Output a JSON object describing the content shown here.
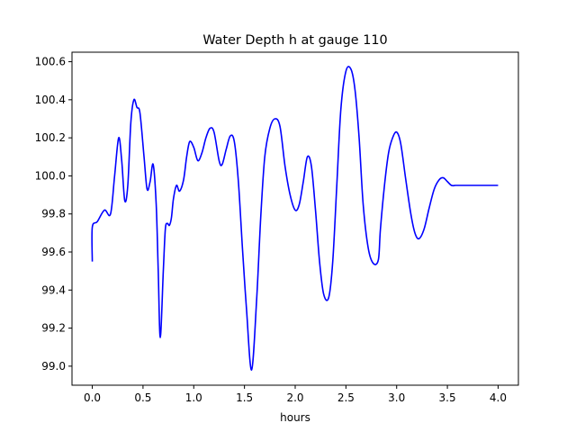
{
  "chart_data": {
    "type": "line",
    "title": "Water Depth h at gauge 110",
    "xlabel": "hours",
    "ylabel": "",
    "xlim": [
      -0.2,
      4.2
    ],
    "ylim": [
      98.9,
      100.65
    ],
    "xticks": [
      0.0,
      0.5,
      1.0,
      1.5,
      2.0,
      2.5,
      3.0,
      3.5,
      4.0
    ],
    "xtick_labels": [
      "0.0",
      "0.5",
      "1.0",
      "1.5",
      "2.0",
      "2.5",
      "3.0",
      "3.5",
      "4.0"
    ],
    "yticks": [
      99.0,
      99.2,
      99.4,
      99.6,
      99.8,
      100.0,
      100.2,
      100.4,
      100.6
    ],
    "ytick_labels": [
      "99.0",
      "99.2",
      "99.4",
      "99.6",
      "99.8",
      "100.0",
      "100.2",
      "100.4",
      "100.6"
    ],
    "grid": false,
    "line_color": "#0000ff",
    "series": [
      {
        "name": "",
        "x": [
          0.0,
          0.0,
          0.05,
          0.12,
          0.18,
          0.22,
          0.26,
          0.29,
          0.32,
          0.35,
          0.38,
          0.41,
          0.44,
          0.47,
          0.51,
          0.54,
          0.57,
          0.6,
          0.63,
          0.65,
          0.67,
          0.7,
          0.72,
          0.74,
          0.76,
          0.78,
          0.8,
          0.83,
          0.86,
          0.9,
          0.93,
          0.96,
          1.0,
          1.04,
          1.08,
          1.12,
          1.16,
          1.2,
          1.25,
          1.28,
          1.32,
          1.36,
          1.4,
          1.44,
          1.48,
          1.52,
          1.57,
          1.62,
          1.66,
          1.7,
          1.75,
          1.8,
          1.85,
          1.9,
          1.95,
          2.0,
          2.04,
          2.08,
          2.12,
          2.16,
          2.2,
          2.24,
          2.28,
          2.33,
          2.37,
          2.41,
          2.45,
          2.5,
          2.55,
          2.59,
          2.63,
          2.67,
          2.72,
          2.77,
          2.82,
          2.84,
          2.88,
          2.92,
          2.96,
          3.0,
          3.04,
          3.09,
          3.14,
          3.18,
          3.22,
          3.27,
          3.32,
          3.37,
          3.42,
          3.46,
          3.5,
          3.54,
          3.58,
          3.62,
          3.67,
          3.72,
          3.77,
          3.82,
          3.86,
          3.9,
          3.94,
          3.97,
          4.0
        ],
        "y": [
          99.55,
          99.73,
          99.76,
          99.82,
          99.8,
          100.0,
          100.2,
          100.08,
          99.87,
          99.95,
          100.28,
          100.4,
          100.36,
          100.33,
          100.1,
          99.93,
          99.97,
          100.06,
          99.85,
          99.5,
          99.15,
          99.5,
          99.72,
          99.75,
          99.74,
          99.78,
          99.88,
          99.95,
          99.92,
          99.98,
          100.1,
          100.18,
          100.15,
          100.08,
          100.12,
          100.2,
          100.25,
          100.23,
          100.08,
          100.06,
          100.14,
          100.21,
          100.18,
          99.97,
          99.62,
          99.3,
          98.98,
          99.35,
          99.78,
          100.1,
          100.25,
          100.3,
          100.26,
          100.05,
          99.9,
          99.82,
          99.85,
          99.97,
          100.1,
          100.05,
          99.82,
          99.55,
          99.38,
          99.36,
          99.55,
          99.95,
          100.35,
          100.55,
          100.56,
          100.45,
          100.2,
          99.85,
          99.62,
          99.54,
          99.56,
          99.72,
          99.95,
          100.12,
          100.2,
          100.23,
          100.17,
          99.98,
          99.8,
          99.7,
          99.67,
          99.72,
          99.83,
          99.93,
          99.98,
          99.99,
          99.97,
          99.95,
          99.95,
          99.95,
          99.95,
          99.95,
          99.95,
          99.95,
          99.95,
          99.95,
          99.95,
          99.95,
          99.95
        ]
      }
    ]
  }
}
